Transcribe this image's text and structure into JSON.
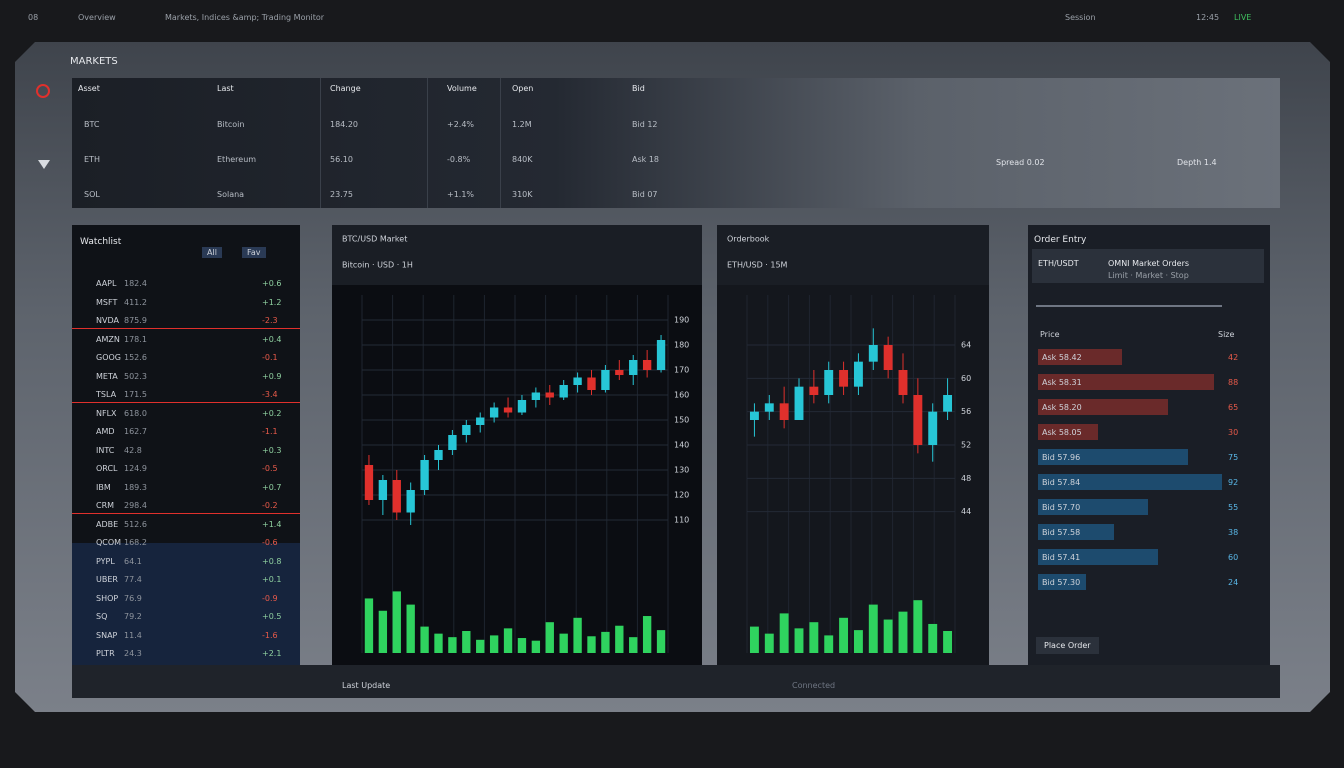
{
  "topbar": {
    "left": [
      "08",
      "Overview",
      "Markets, Indices &amp; Trading Monitor"
    ],
    "right": [
      "Session",
      "12:45",
      "LIVE"
    ]
  },
  "header": {
    "title": "MARKETS"
  },
  "table": {
    "headers": [
      "Asset",
      "Last",
      "Change",
      "Volume",
      "Open",
      "Bid"
    ],
    "rows": [
      [
        "BTC",
        "Bitcoin",
        "184.20",
        "+2.4%",
        "1.2M",
        "Bid 12"
      ],
      [
        "ETH",
        "Ethereum",
        "56.10",
        "-0.8%",
        "840K",
        "Ask 18"
      ],
      [
        "SOL",
        "Solana",
        "23.75",
        "+1.1%",
        "310K",
        "Bid 07"
      ]
    ],
    "notes": [
      "Spread 0.02",
      "Depth 1.4"
    ]
  },
  "watchlist": {
    "title": "Watchlist",
    "tabs": [
      "All",
      "Fav"
    ],
    "rows": [
      [
        "AAPL",
        "182.4",
        "+0.6"
      ],
      [
        "MSFT",
        "411.2",
        "+1.2"
      ],
      [
        "NVDA",
        "875.9",
        "-2.3"
      ],
      [
        "AMZN",
        "178.1",
        "+0.4"
      ],
      [
        "GOOG",
        "152.6",
        "-0.1"
      ],
      [
        "META",
        "502.3",
        "+0.9"
      ],
      [
        "TSLA",
        "171.5",
        "-3.4"
      ],
      [
        "NFLX",
        "618.0",
        "+0.2"
      ],
      [
        "AMD",
        "162.7",
        "-1.1"
      ],
      [
        "INTC",
        "42.8",
        "+0.3"
      ],
      [
        "ORCL",
        "124.9",
        "-0.5"
      ],
      [
        "IBM",
        "189.3",
        "+0.7"
      ],
      [
        "CRM",
        "298.4",
        "-0.2"
      ],
      [
        "ADBE",
        "512.6",
        "+1.4"
      ],
      [
        "QCOM",
        "168.2",
        "-0.6"
      ],
      [
        "PYPL",
        "64.1",
        "+0.8"
      ],
      [
        "UBER",
        "77.4",
        "+0.1"
      ],
      [
        "SHOP",
        "76.9",
        "-0.9"
      ],
      [
        "SQ",
        "79.2",
        "+0.5"
      ],
      [
        "SNAP",
        "11.4",
        "-1.6"
      ],
      [
        "PLTR",
        "24.3",
        "+2.1"
      ]
    ],
    "alerts": [
      2,
      6,
      12
    ]
  },
  "chart_data": [
    {
      "type": "candlestick",
      "title": "BTC/USD Market",
      "subtitle": "Bitcoin · USD · 1H",
      "up_color": "#27c6d6",
      "down_color": "#e0302c",
      "volume_color": "#2fd35f",
      "ylim": [
        100,
        200
      ],
      "yticks": [
        110,
        120,
        130,
        140,
        150,
        160,
        170,
        180,
        190
      ],
      "vlim": [
        0,
        100
      ],
      "grid": true,
      "candles": [
        {
          "open": 132,
          "high": 136,
          "low": 116,
          "close": 118
        },
        {
          "open": 118,
          "high": 128,
          "low": 112,
          "close": 126
        },
        {
          "open": 126,
          "high": 130,
          "low": 110,
          "close": 113
        },
        {
          "open": 113,
          "high": 125,
          "low": 108,
          "close": 122
        },
        {
          "open": 122,
          "high": 136,
          "low": 120,
          "close": 134
        },
        {
          "open": 134,
          "high": 140,
          "low": 130,
          "close": 138
        },
        {
          "open": 138,
          "high": 146,
          "low": 136,
          "close": 144
        },
        {
          "open": 144,
          "high": 150,
          "low": 141,
          "close": 148
        },
        {
          "open": 148,
          "high": 153,
          "low": 145,
          "close": 151
        },
        {
          "open": 151,
          "high": 157,
          "low": 149,
          "close": 155
        },
        {
          "open": 155,
          "high": 159,
          "low": 151,
          "close": 153
        },
        {
          "open": 153,
          "high": 160,
          "low": 152,
          "close": 158
        },
        {
          "open": 158,
          "high": 163,
          "low": 155,
          "close": 161
        },
        {
          "open": 161,
          "high": 164,
          "low": 156,
          "close": 159
        },
        {
          "open": 159,
          "high": 166,
          "low": 158,
          "close": 164
        },
        {
          "open": 164,
          "high": 169,
          "low": 161,
          "close": 167
        },
        {
          "open": 167,
          "high": 170,
          "low": 160,
          "close": 162
        },
        {
          "open": 162,
          "high": 172,
          "low": 161,
          "close": 170
        },
        {
          "open": 170,
          "high": 174,
          "low": 166,
          "close": 168
        },
        {
          "open": 168,
          "high": 176,
          "low": 164,
          "close": 174
        },
        {
          "open": 174,
          "high": 178,
          "low": 167,
          "close": 170
        },
        {
          "open": 170,
          "high": 184,
          "low": 169,
          "close": 182
        }
      ],
      "volume": [
        62,
        48,
        70,
        55,
        30,
        22,
        18,
        25,
        15,
        20,
        28,
        17,
        14,
        35,
        22,
        40,
        19,
        24,
        31,
        18,
        42,
        26
      ]
    },
    {
      "type": "candlestick",
      "title": "Orderbook",
      "subtitle": "ETH/USD · 15M",
      "up_color": "#27c6d6",
      "down_color": "#e0302c",
      "volume_color": "#2fd35f",
      "ylim": [
        40,
        70
      ],
      "yticks": [
        44,
        48,
        52,
        56,
        60,
        64
      ],
      "vlim": [
        0,
        100
      ],
      "grid": true,
      "candles": [
        {
          "open": 55,
          "high": 57,
          "low": 53,
          "close": 56
        },
        {
          "open": 56,
          "high": 58,
          "low": 55,
          "close": 57
        },
        {
          "open": 57,
          "high": 59,
          "low": 54,
          "close": 55
        },
        {
          "open": 55,
          "high": 60,
          "low": 55,
          "close": 59
        },
        {
          "open": 59,
          "high": 61,
          "low": 57,
          "close": 58
        },
        {
          "open": 58,
          "high": 62,
          "low": 57,
          "close": 61
        },
        {
          "open": 61,
          "high": 62,
          "low": 58,
          "close": 59
        },
        {
          "open": 59,
          "high": 63,
          "low": 58,
          "close": 62
        },
        {
          "open": 62,
          "high": 66,
          "low": 61,
          "close": 64
        },
        {
          "open": 64,
          "high": 65,
          "low": 60,
          "close": 61
        },
        {
          "open": 61,
          "high": 63,
          "low": 57,
          "close": 58
        },
        {
          "open": 58,
          "high": 60,
          "low": 51,
          "close": 52
        },
        {
          "open": 52,
          "high": 57,
          "low": 50,
          "close": 56
        },
        {
          "open": 56,
          "high": 60,
          "low": 55,
          "close": 58
        }
      ],
      "volume": [
        30,
        22,
        45,
        28,
        35,
        20,
        40,
        26,
        55,
        38,
        47,
        60,
        33,
        25
      ]
    }
  ],
  "orders": {
    "title": "Order Entry",
    "pair": "ETH/USDT",
    "headline": "OMNI Market Orders",
    "sub": "Limit · Market · Stop",
    "header": [
      "Price",
      "Size"
    ],
    "rows": [
      {
        "label": "Ask 58.42",
        "size": 42
      },
      {
        "label": "Ask 58.31",
        "size": 88
      },
      {
        "label": "Ask 58.20",
        "size": 65
      },
      {
        "label": "Ask 58.05",
        "size": 30
      },
      {
        "label": "Bid 57.96",
        "size": 75
      },
      {
        "label": "Bid 57.84",
        "size": 92
      },
      {
        "label": "Bid 57.70",
        "size": 55
      },
      {
        "label": "Bid 57.58",
        "size": 38
      },
      {
        "label": "Bid 57.41",
        "size": 60
      },
      {
        "label": "Bid 57.30",
        "size": 24
      }
    ],
    "button": "Place Order"
  },
  "footer": {
    "left": "Last Update",
    "mid": "Connected"
  }
}
